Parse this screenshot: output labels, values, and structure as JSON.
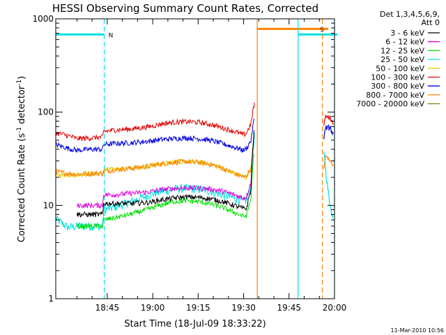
{
  "chart_data": {
    "type": "line",
    "title": "HESSI Observing Summary Count Rates, Corrected",
    "xlabel": "Start Time (18-Jul-09 18:33:22)",
    "ylabel_main": "Corrected Count Rate (s",
    "ylabel_sup1": "-1",
    "ylabel_mid": " detector",
    "ylabel_sup2": "-1",
    "ylabel_end": ")",
    "y_scale": "log",
    "ylim": [
      1,
      1000
    ],
    "xlim": [
      -7,
      85
    ],
    "x_units": "minutes after 18:40",
    "x_ticks": [
      {
        "x": 10,
        "label": "18:45"
      },
      {
        "x": 25,
        "label": "19:00"
      },
      {
        "x": 40,
        "label": "19:15"
      },
      {
        "x": 55,
        "label": "19:30"
      },
      {
        "x": 70,
        "label": "19:45"
      },
      {
        "x": 85,
        "label": "20:00"
      }
    ],
    "x_minor_ticks": [
      0,
      5,
      15,
      20,
      30,
      35,
      45,
      50,
      60,
      65,
      75,
      80
    ],
    "y_ticks": [
      {
        "y": 1,
        "label": "1"
      },
      {
        "y": 10,
        "label": "10"
      },
      {
        "y": 100,
        "label": "100"
      },
      {
        "y": 1000,
        "label": "1000"
      }
    ],
    "legend_title": [
      "Det 1,3,4,5,6,9,",
      "Att 0"
    ],
    "legend_placement": "right",
    "series": [
      {
        "name": "3 - 6 keV",
        "color": "#000000",
        "x": [
          0,
          8.5,
          8.8,
          12,
          18,
          24,
          28,
          32,
          36,
          40,
          44,
          48,
          52,
          55,
          56,
          57.5,
          58.2,
          58.6
        ],
        "y": [
          8,
          8,
          10.5,
          10.5,
          10.5,
          10.8,
          11.5,
          12,
          12.3,
          12.2,
          11.8,
          11,
          10,
          9.2,
          9.3,
          15,
          50,
          70
        ]
      },
      {
        "name": "6 - 12 keV",
        "color": "#e000e0",
        "x": [
          0,
          8.5,
          8.8,
          12,
          18,
          24,
          28,
          32,
          36,
          40,
          44,
          48,
          52,
          55,
          56,
          57.5,
          58.2,
          58.6
        ],
        "y": [
          10,
          10,
          13,
          13,
          13.5,
          14,
          14.8,
          15.2,
          15.4,
          15.3,
          15,
          14.2,
          13,
          12,
          12.5,
          18,
          50,
          70
        ]
      },
      {
        "name": "12 - 25 keV",
        "color": "#00e000",
        "x": [
          0,
          8.5,
          8.8,
          12,
          18,
          24,
          28,
          32,
          36,
          40,
          44,
          48,
          52,
          55,
          56,
          57.5,
          58.2,
          58.6
        ],
        "y": [
          6,
          6,
          7,
          7.3,
          8.1,
          9.2,
          10.2,
          11,
          11.2,
          11,
          10.4,
          9.5,
          8.4,
          7.6,
          7.8,
          12,
          30,
          45
        ]
      },
      {
        "name": "25 - 50 keV",
        "color": "#00e0e0",
        "x": [
          -7,
          -3,
          0,
          5,
          8.5,
          8.8,
          12,
          18,
          24,
          28,
          32,
          36,
          40,
          44,
          48,
          52,
          55,
          56,
          57.5,
          58.2,
          58.6
        ],
        "y": [
          7.2,
          5.8,
          6,
          6,
          6,
          9,
          9.5,
          11,
          13,
          14.2,
          15,
          15.2,
          15,
          14.2,
          13,
          12,
          11,
          11.5,
          16,
          40,
          55
        ]
      },
      {
        "name": "50 - 100 keV",
        "color": "#e0d000",
        "x": [
          -7,
          0,
          5,
          8.5,
          8.8,
          12,
          18,
          24,
          28,
          32,
          36,
          40,
          44,
          48,
          52,
          55,
          56,
          57.5,
          58.2
        ],
        "y": [
          21,
          21.5,
          22,
          22,
          24,
          24.5,
          25,
          26.5,
          28,
          29,
          29.5,
          29,
          27.5,
          25,
          22,
          20,
          20.5,
          25,
          45
        ]
      },
      {
        "name": "100 - 300 keV",
        "color": "#e00000",
        "x": [
          -7,
          -3,
          0,
          5,
          8.5,
          8.8,
          12,
          18,
          24,
          28,
          32,
          36,
          40,
          44,
          48,
          52,
          55,
          56,
          57.5,
          58.2,
          58.6
        ],
        "y": [
          60,
          56,
          52,
          53,
          54,
          62,
          64,
          66,
          70,
          75,
          78,
          79,
          78,
          74,
          68,
          62,
          57,
          60,
          75,
          110,
          120
        ]
      },
      {
        "name": "300 - 800 keV",
        "color": "#0000e0",
        "x": [
          -7,
          -3,
          0,
          5,
          8.5,
          8.8,
          12,
          18,
          24,
          28,
          32,
          36,
          40,
          44,
          48,
          52,
          55,
          56,
          57.5,
          58.2,
          58.6
        ],
        "y": [
          45,
          41,
          39,
          40,
          40,
          45,
          46,
          47,
          49,
          51,
          52,
          53,
          52,
          50,
          46,
          42,
          39,
          41,
          50,
          75,
          85
        ]
      },
      {
        "name": "800 - 7000 keV",
        "color": "#ff8000",
        "x": [
          -7,
          -3,
          0,
          5,
          8.5,
          8.8,
          12,
          18,
          24,
          28,
          32,
          36,
          40,
          44,
          48,
          52,
          55,
          56,
          57.5,
          58.2
        ],
        "y": [
          23,
          22,
          21.5,
          22,
          22,
          23,
          24,
          25,
          26.5,
          28,
          29,
          29.5,
          29,
          27.5,
          25,
          22,
          20,
          20.5,
          25,
          40
        ]
      },
      {
        "name": "7000 - 20000 keV",
        "color": "#808000",
        "x": [],
        "y": []
      }
    ],
    "later_segment": [
      {
        "series": "100 - 300 keV",
        "x": [
          81.5,
          82,
          83.5,
          84.5
        ],
        "y": [
          70,
          88,
          88,
          75
        ]
      },
      {
        "series": "300 - 800 keV",
        "x": [
          81.5,
          82,
          83.5,
          84.5
        ],
        "y": [
          50,
          68,
          68,
          58
        ]
      },
      {
        "series": "800 - 7000 keV",
        "x": [
          81.5,
          82,
          83.5,
          84.5
        ],
        "y": [
          24,
          35,
          30,
          27
        ]
      },
      {
        "series": "25 - 50 keV",
        "x": [
          81.5,
          82.2,
          83.5,
          84.5
        ],
        "y": [
          40,
          20,
          10,
          7
        ]
      }
    ],
    "flag_bars": [
      {
        "label": "N",
        "color": "#00e0e0",
        "x_start": -7,
        "x_end": 9,
        "y": 680
      },
      {
        "label": "",
        "color": "#00e0e0",
        "x_start": 73,
        "x_end": 86,
        "y": 680
      },
      {
        "label": "S",
        "color": "#ff8000",
        "x_start": 59.5,
        "x_end": 83,
        "y": 780
      }
    ],
    "vertical_lines": [
      {
        "x": 9,
        "color": "#00e0e0",
        "style": "dashed"
      },
      {
        "x": 59.5,
        "color": "#ff8000",
        "style": "solid"
      },
      {
        "x": 73,
        "color": "#00e0e0",
        "style": "solid"
      },
      {
        "x": 81,
        "color": "#ff8000",
        "style": "dashed"
      },
      {
        "x": 85,
        "color": "#00e0e0",
        "style": "dashed"
      }
    ],
    "footer": "11-Mar-2010 10:56"
  }
}
